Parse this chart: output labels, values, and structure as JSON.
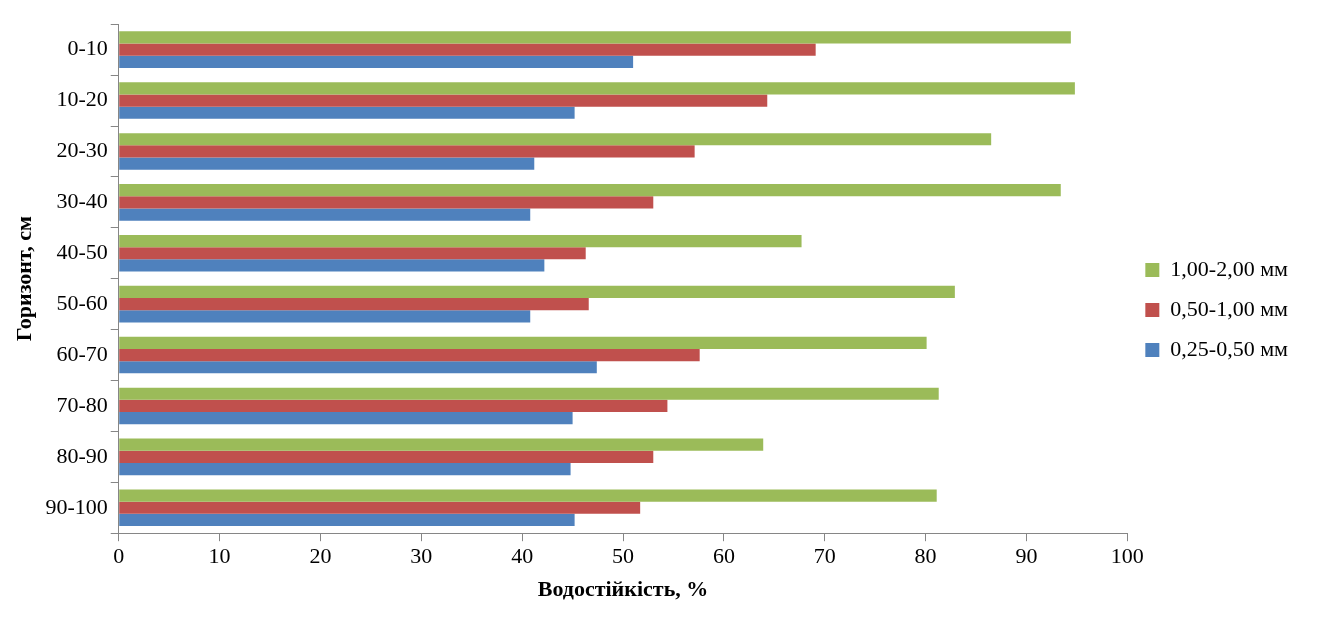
{
  "chart_data": {
    "type": "bar",
    "orientation": "horizontal",
    "xlabel": "Водостійкість, %",
    "ylabel": "Горизонт, см",
    "categories": [
      "0-10",
      "10-20",
      "20-30",
      "30-40",
      "40-50",
      "50-60",
      "60-70",
      "70-80",
      "80-90",
      "90-100"
    ],
    "series": [
      {
        "name": "1,00-2,00 мм",
        "color": "#9bbb59",
        "values": [
          94.4,
          94.8,
          86.5,
          93.4,
          67.7,
          82.9,
          80.1,
          81.3,
          63.9,
          81.1
        ]
      },
      {
        "name": "0,50-1,00 мм",
        "color": "#c0504d",
        "values": [
          69.1,
          64.3,
          57.1,
          53.0,
          46.3,
          46.6,
          57.6,
          54.4,
          53.0,
          51.7
        ]
      },
      {
        "name": "0,25-0,50 мм",
        "color": "#4f81bd",
        "values": [
          51.0,
          45.2,
          41.2,
          40.8,
          42.2,
          40.8,
          47.4,
          45.0,
          44.8,
          45.2
        ]
      }
    ],
    "xlim": [
      0,
      100
    ],
    "xticks": [
      0,
      10,
      20,
      30,
      40,
      50,
      60,
      70,
      80,
      90,
      100
    ],
    "grid": false,
    "legend": "right"
  }
}
